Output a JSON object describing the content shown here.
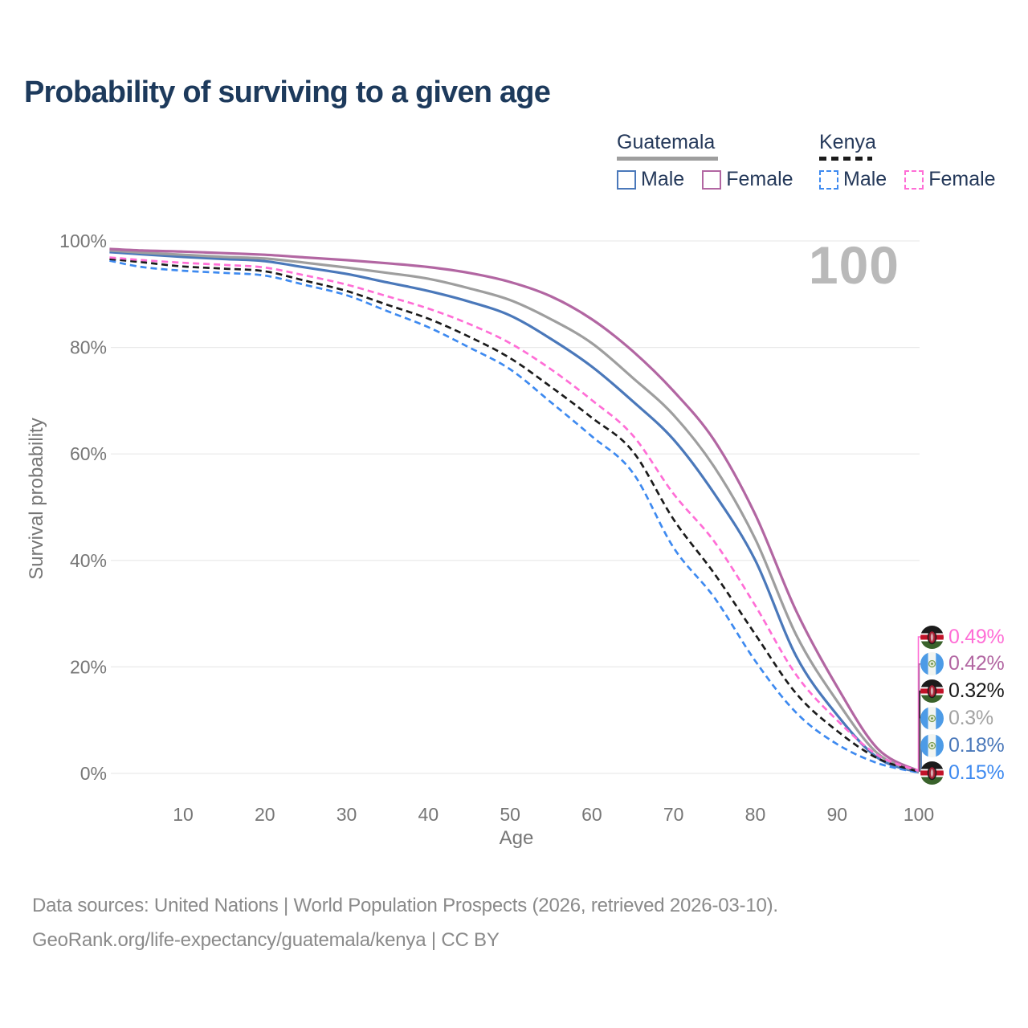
{
  "title": "Probability of surviving to a given age",
  "watermark": "100",
  "legend": {
    "groups": [
      {
        "label": "Guatemala",
        "line_style": "solid",
        "items": [
          {
            "label": "Male",
            "color": "#4a78ba"
          },
          {
            "label": "Female",
            "color": "#b266a2"
          }
        ]
      },
      {
        "label": "Kenya",
        "line_style": "dashed",
        "items": [
          {
            "label": "Male",
            "color": "#3e8af0"
          },
          {
            "label": "Female",
            "color": "#ff6ed6"
          }
        ]
      }
    ]
  },
  "chart_data": {
    "type": "line",
    "title": "Probability of surviving to a given age",
    "xlabel": "Age",
    "ylabel": "Survival probability",
    "xlim": [
      1,
      100
    ],
    "ylim": [
      0,
      100
    ],
    "grid": true,
    "legend_position": "top-right",
    "x_ticks": [
      10,
      20,
      30,
      40,
      50,
      60,
      70,
      80,
      90,
      100
    ],
    "y_ticks": [
      {
        "label": "100%",
        "value": 100
      },
      {
        "label": "80%",
        "value": 80
      },
      {
        "label": "60%",
        "value": 60
      },
      {
        "label": "40%",
        "value": 40
      },
      {
        "label": "20%",
        "value": 20
      },
      {
        "label": "0%",
        "value": 0
      }
    ],
    "ages": [
      1,
      5,
      10,
      15,
      20,
      25,
      30,
      35,
      40,
      45,
      50,
      55,
      60,
      65,
      70,
      75,
      80,
      85,
      90,
      95,
      100
    ],
    "series": [
      {
        "id": "guatemala-male",
        "name": "Guatemala Male",
        "color": "#4a78ba",
        "dashed": false,
        "values": [
          97.9,
          97.5,
          97.0,
          96.6,
          96.2,
          95.0,
          93.8,
          92.2,
          90.6,
          88.6,
          86.0,
          81.6,
          76.4,
          69.9,
          62.7,
          52.5,
          40.0,
          22.0,
          11.0,
          2.9,
          0.18
        ]
      },
      {
        "id": "guatemala-all",
        "name": "Guatemala Both sexes",
        "color": "#9e9e9e",
        "dashed": false,
        "values": [
          98.2,
          97.8,
          97.4,
          97.0,
          96.7,
          95.9,
          95.0,
          94.0,
          92.9,
          91.1,
          88.9,
          85.3,
          80.8,
          74.3,
          67.3,
          57.5,
          44.0,
          26.0,
          13.6,
          3.7,
          0.3
        ]
      },
      {
        "id": "guatemala-female",
        "name": "Guatemala Female",
        "color": "#b266a2",
        "dashed": false,
        "values": [
          98.5,
          98.2,
          98.0,
          97.7,
          97.4,
          96.9,
          96.4,
          95.8,
          95.1,
          94.0,
          92.3,
          89.6,
          85.3,
          79.3,
          71.8,
          62.5,
          48.6,
          30.5,
          16.3,
          4.6,
          0.42
        ]
      },
      {
        "id": "kenya-male",
        "name": "Kenya Male",
        "color": "#3e8af0",
        "dashed": true,
        "values": [
          96.3,
          95.1,
          94.4,
          94.0,
          93.5,
          91.7,
          89.8,
          86.8,
          83.8,
          80.0,
          75.9,
          69.7,
          63.3,
          56.5,
          42.4,
          33.0,
          21.1,
          11.4,
          5.5,
          1.9,
          0.15
        ]
      },
      {
        "id": "kenya-all",
        "name": "Kenya Both sexes",
        "color": "#1b1b1b",
        "dashed": true,
        "values": [
          96.6,
          96.0,
          95.2,
          94.8,
          94.3,
          92.5,
          90.6,
          88.0,
          85.4,
          82.0,
          78.0,
          72.6,
          66.8,
          60.5,
          47.7,
          37.5,
          26.1,
          15.0,
          8.0,
          2.8,
          0.32
        ]
      },
      {
        "id": "kenya-female",
        "name": "Kenya Female",
        "color": "#ff6ed6",
        "dashed": true,
        "values": [
          96.9,
          96.4,
          95.9,
          95.5,
          95.0,
          93.5,
          91.8,
          89.6,
          87.3,
          84.4,
          80.8,
          75.9,
          70.1,
          63.5,
          52.5,
          43.5,
          31.5,
          18.5,
          10.0,
          3.4,
          0.49
        ]
      }
    ]
  },
  "end_labels": [
    {
      "value": "0.49%",
      "color": "#ff6ed6",
      "flag": "kenya",
      "series": "kenya-female"
    },
    {
      "value": "0.42%",
      "color": "#b266a2",
      "flag": "guatemala",
      "series": "guatemala-female"
    },
    {
      "value": "0.32%",
      "color": "#1b1b1b",
      "flag": "kenya",
      "series": "kenya-all"
    },
    {
      "value": "0.3%",
      "color": "#a3a3a3",
      "flag": "guatemala",
      "series": "guatemala-all"
    },
    {
      "value": "0.18%",
      "color": "#4a78ba",
      "flag": "guatemala",
      "series": "guatemala-male"
    },
    {
      "value": "0.15%",
      "color": "#3e8af0",
      "flag": "kenya",
      "series": "kenya-male"
    }
  ],
  "footer": {
    "line1": "Data sources: United Nations | World Population Prospects (2026, retrieved 2026-03-10).",
    "line2": "GeoRank.org/life-expectancy/guatemala/kenya | CC BY"
  }
}
